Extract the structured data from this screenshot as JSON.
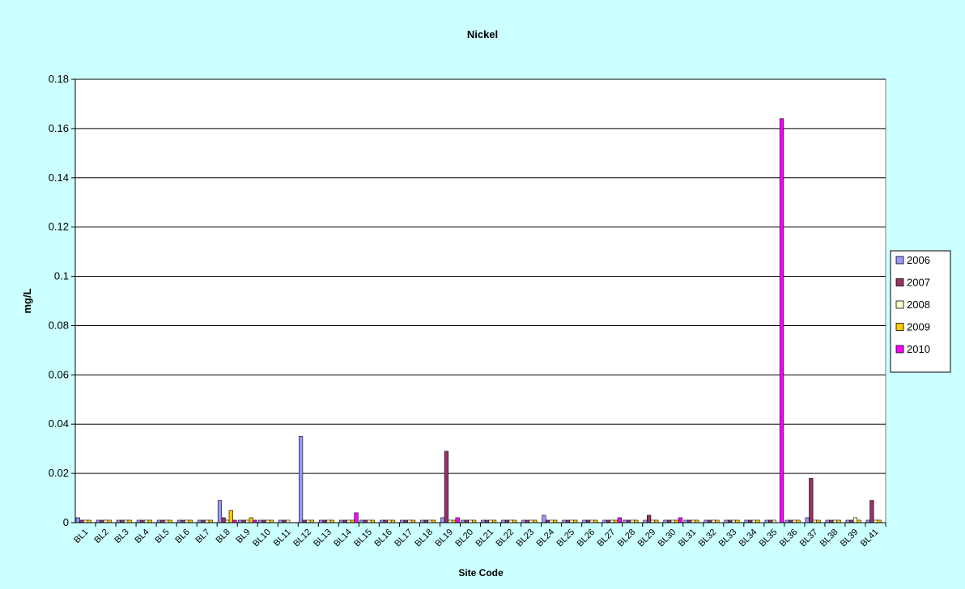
{
  "chart_data": {
    "type": "bar",
    "title": "Nickel",
    "xlabel": "Site Code",
    "ylabel": "mg/L",
    "ylim": [
      0,
      0.18
    ],
    "yticks": [
      "0",
      "0.02",
      "0.04",
      "0.06",
      "0.08",
      "0.1",
      "0.12",
      "0.14",
      "0.16",
      "0.18"
    ],
    "grid": true,
    "legend_position": "right",
    "categories": [
      "BL1",
      "BL2",
      "BL3",
      "BL4",
      "BL5",
      "BL6",
      "BL7",
      "BL8",
      "BL9",
      "BL10",
      "BL11",
      "BL12",
      "BL13",
      "BL14",
      "BL15",
      "BL16",
      "BL17",
      "BL18",
      "BL19",
      "BL20",
      "BL21",
      "BL22",
      "BL23",
      "BL24",
      "BL25",
      "BL26",
      "BL27",
      "BL28",
      "BL29",
      "BL30",
      "BL31",
      "BL32",
      "BL33",
      "BL34",
      "BL35",
      "BL36",
      "BL37",
      "BL38",
      "BL39",
      "BL41"
    ],
    "series": [
      {
        "name": "2006",
        "color": "#9999ff",
        "values": [
          0.002,
          0.001,
          0.001,
          0.001,
          0.001,
          0.001,
          0.001,
          0.009,
          0.001,
          0.001,
          0.001,
          0.035,
          0.001,
          0.001,
          0.001,
          0.001,
          0.001,
          0.001,
          0.002,
          0.001,
          0.001,
          0.001,
          0.001,
          0.003,
          0.001,
          0.001,
          0.001,
          0.001,
          0.001,
          0.001,
          0.001,
          0.001,
          0.001,
          0.001,
          0.001,
          0.001,
          0.002,
          0.001,
          0.001,
          0.001
        ]
      },
      {
        "name": "2007",
        "color": "#993366",
        "values": [
          0.001,
          0.001,
          0.001,
          0.001,
          0.001,
          0.001,
          0.001,
          0.002,
          0.001,
          0.001,
          0.001,
          0.001,
          0.001,
          0.001,
          0.001,
          0.001,
          0.001,
          0.001,
          0.029,
          0.001,
          0.001,
          0.001,
          0.001,
          0.001,
          0.001,
          0.001,
          0.001,
          0.001,
          0.003,
          0.001,
          0.001,
          0.001,
          0.001,
          0.001,
          0.001,
          0.001,
          0.018,
          0.001,
          0.001,
          0.009
        ]
      },
      {
        "name": "2008",
        "color": "#ffffcc",
        "values": [
          0.001,
          0.001,
          0.001,
          0.001,
          0.001,
          0.001,
          0.001,
          0.001,
          0.001,
          0.001,
          0.001,
          0.001,
          0.001,
          0.001,
          0.001,
          0.001,
          0.001,
          0.001,
          0.001,
          0.001,
          0.001,
          0.001,
          0.001,
          0.001,
          0.001,
          0.001,
          0.001,
          0.001,
          0.001,
          0.001,
          0.001,
          0.001,
          0.001,
          0.001,
          0.001,
          0.001,
          0.001,
          0.001,
          0.002,
          0.001
        ]
      },
      {
        "name": "2009",
        "color": "#ffcc00",
        "values": [
          0.001,
          0.001,
          0.001,
          0.001,
          0.001,
          0.001,
          0.001,
          0.005,
          0.002,
          0.001,
          null,
          0.001,
          0.001,
          0.001,
          0.001,
          0.001,
          0.001,
          0.001,
          0.001,
          0.001,
          0.001,
          0.001,
          0.001,
          0.001,
          0.001,
          0.001,
          0.001,
          0.001,
          0.001,
          0.001,
          0.001,
          0.001,
          0.001,
          0.001,
          null,
          0.001,
          0.001,
          0.001,
          0.001,
          0.001
        ]
      },
      {
        "name": "2010",
        "color": "#ff00ff",
        "values": [
          null,
          null,
          null,
          null,
          null,
          null,
          null,
          0.001,
          0.001,
          null,
          null,
          null,
          null,
          0.004,
          null,
          null,
          null,
          null,
          0.002,
          null,
          null,
          null,
          null,
          null,
          null,
          null,
          0.002,
          null,
          null,
          0.002,
          null,
          null,
          null,
          null,
          0.164,
          null,
          null,
          null,
          null,
          null
        ]
      }
    ]
  }
}
